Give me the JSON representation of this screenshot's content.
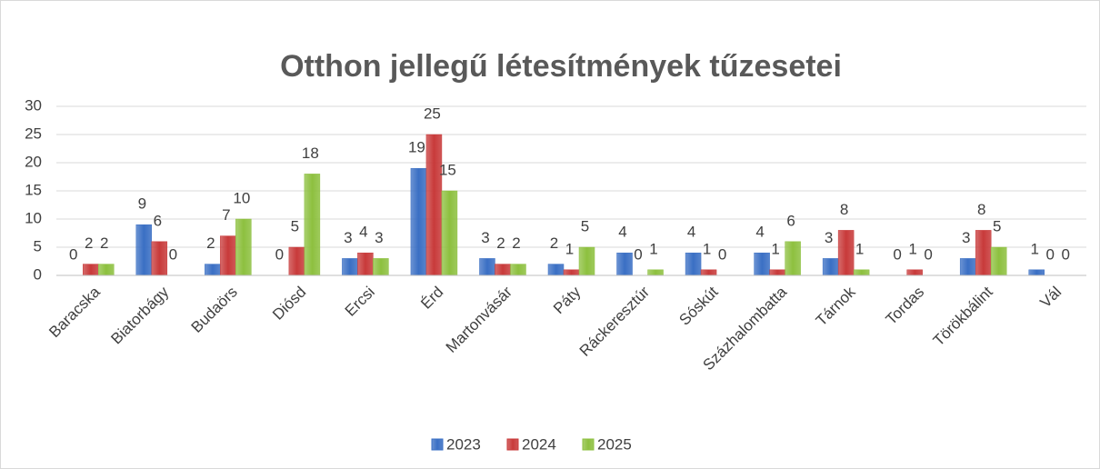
{
  "chart_data": {
    "type": "bar",
    "title": "Otthon jellegű létesítmények tűzesetei",
    "categories": [
      "Baracska",
      "Biatorbágy",
      "Budaörs",
      "Diósd",
      "Ercsi",
      "Érd",
      "Martonvásár",
      "Páty",
      "Ráckeresztúr",
      "Sóskút",
      "Százhalombatta",
      "Tárnok",
      "Tordas",
      "Törökbálint",
      "Vál"
    ],
    "series": [
      {
        "name": "2023",
        "color": "#3a6fc4",
        "values": [
          0,
          9,
          2,
          0,
          3,
          19,
          3,
          2,
          4,
          4,
          4,
          3,
          0,
          3,
          1
        ]
      },
      {
        "name": "2024",
        "color": "#c83a3a",
        "values": [
          2,
          6,
          7,
          5,
          4,
          25,
          2,
          1,
          0,
          1,
          1,
          8,
          1,
          8,
          0
        ]
      },
      {
        "name": "2025",
        "color": "#8dc03f",
        "values": [
          2,
          0,
          10,
          18,
          3,
          15,
          2,
          5,
          1,
          0,
          6,
          1,
          0,
          5,
          0
        ]
      }
    ],
    "ylim": [
      0,
      30
    ],
    "yticks": [
      0,
      5,
      10,
      15,
      20,
      25,
      30
    ],
    "grid": true,
    "legend": "bottom"
  }
}
